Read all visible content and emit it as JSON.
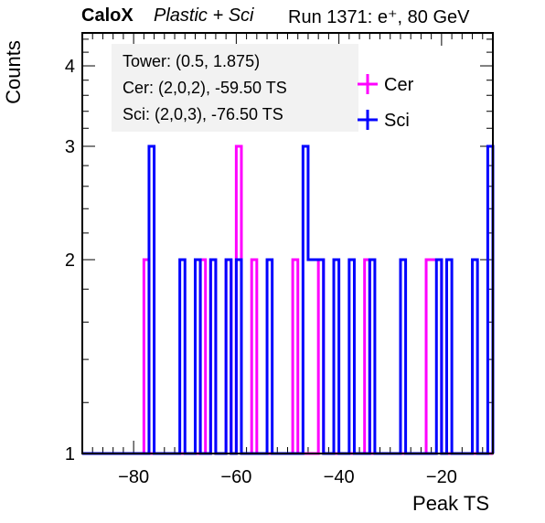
{
  "header": {
    "brand": "CaloX",
    "subtitle": "Plastic + Sci",
    "run": "Run 1371: e⁺, 80 GeV"
  },
  "chart_data": {
    "type": "histogram",
    "xlabel": "Peak TS",
    "ylabel": "Counts",
    "xlim": [
      -90,
      -10
    ],
    "ylim": [
      1,
      4.5
    ],
    "log_y": true,
    "bin_width": 1,
    "xticks": [
      -80,
      -60,
      -40,
      -20
    ],
    "xtick_labels": [
      "−80",
      "−60",
      "−40",
      "−20"
    ],
    "yticks": [
      1,
      2,
      3,
      4
    ],
    "info": [
      "Tower: (0.5, 1.875)",
      "Cer: (2,0,2), -59.50 TS",
      "Sci: (2,0,3), -76.50 TS"
    ],
    "legend": {
      "placement": "top-right",
      "entries": [
        "Cer",
        "Sci"
      ]
    },
    "series": [
      {
        "name": "Cer",
        "color": "#ff00ff",
        "bins": [
          {
            "x": -78,
            "y": 2
          },
          {
            "x": -67,
            "y": 2
          },
          {
            "x": -65,
            "y": 2
          },
          {
            "x": -62,
            "y": 2
          },
          {
            "x": -60,
            "y": 3
          },
          {
            "x": -57,
            "y": 2
          },
          {
            "x": -49,
            "y": 2
          },
          {
            "x": -44,
            "y": 2
          },
          {
            "x": -35,
            "y": 2
          },
          {
            "x": -23,
            "y": 2
          },
          {
            "x": -22,
            "y": 2
          },
          {
            "x": -21,
            "y": 2
          }
        ]
      },
      {
        "name": "Sci",
        "color": "#0000ff",
        "bins": [
          {
            "x": -77,
            "y": 3
          },
          {
            "x": -71,
            "y": 2
          },
          {
            "x": -68,
            "y": 2
          },
          {
            "x": -65,
            "y": 2
          },
          {
            "x": -62,
            "y": 2
          },
          {
            "x": -60,
            "y": 2
          },
          {
            "x": -54,
            "y": 2
          },
          {
            "x": -47,
            "y": 3
          },
          {
            "x": -46,
            "y": 2
          },
          {
            "x": -45,
            "y": 2
          },
          {
            "x": -44,
            "y": 2
          },
          {
            "x": -41,
            "y": 2
          },
          {
            "x": -38,
            "y": 2
          },
          {
            "x": -34,
            "y": 2
          },
          {
            "x": -28,
            "y": 2
          },
          {
            "x": -21,
            "y": 2
          },
          {
            "x": -19,
            "y": 2
          },
          {
            "x": -14,
            "y": 2
          },
          {
            "x": -11,
            "y": 3
          }
        ]
      }
    ]
  }
}
